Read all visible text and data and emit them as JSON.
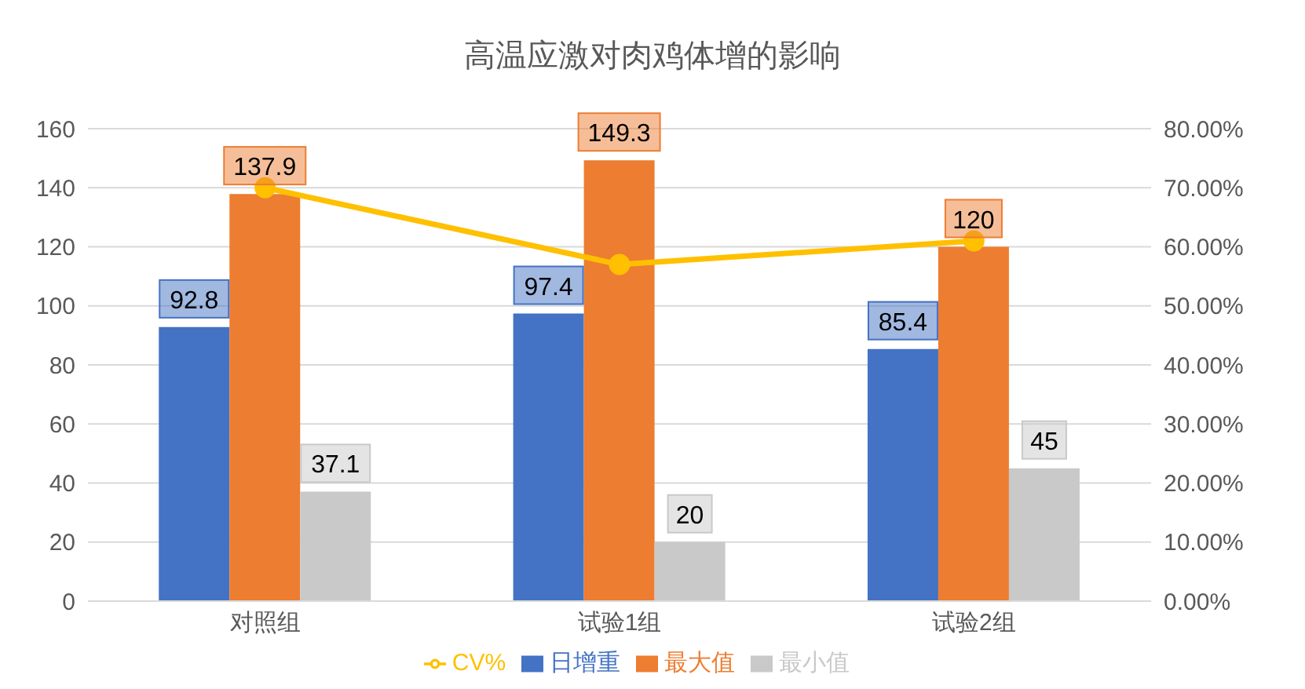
{
  "chart_data": {
    "type": "bar",
    "title": "高温应激对肉鸡体增的影响",
    "categories": [
      "对照组",
      "试验1组",
      "试验2组"
    ],
    "series": [
      {
        "name": "日增重",
        "color": "#4472c4",
        "values": [
          92.8,
          97.4,
          85.4
        ],
        "value_labels": [
          "92.8",
          "97.4",
          "85.4"
        ]
      },
      {
        "name": "最大值",
        "color": "#ed7d31",
        "values": [
          137.9,
          149.3,
          120
        ],
        "value_labels": [
          "137.9",
          "149.3",
          "120"
        ]
      },
      {
        "name": "最小值",
        "color": "#c9c9c9",
        "values": [
          37.1,
          20,
          45
        ],
        "value_labels": [
          "37.1",
          "20",
          "45"
        ]
      },
      {
        "name": "CV%",
        "type": "line",
        "axis": "y2",
        "color": "#ffc000",
        "values": [
          70,
          57,
          61
        ],
        "marker": "circle"
      }
    ],
    "ylim": [
      0,
      160
    ],
    "yticks": [
      0,
      20,
      40,
      60,
      80,
      100,
      120,
      140,
      160
    ],
    "y2lim": [
      0,
      80
    ],
    "y2ticks": [
      {
        "value": 0,
        "label": "0.00%"
      },
      {
        "value": 10,
        "label": "10.00%"
      },
      {
        "value": 20,
        "label": "20.00%"
      },
      {
        "value": 30,
        "label": "30.00%"
      },
      {
        "value": 40,
        "label": "40.00%"
      },
      {
        "value": 50,
        "label": "50.00%"
      },
      {
        "value": 60,
        "label": "60.00%"
      },
      {
        "value": 70,
        "label": "70.00%"
      },
      {
        "value": 80,
        "label": "80.00%"
      }
    ],
    "grid": "y",
    "legend": "bottom"
  }
}
